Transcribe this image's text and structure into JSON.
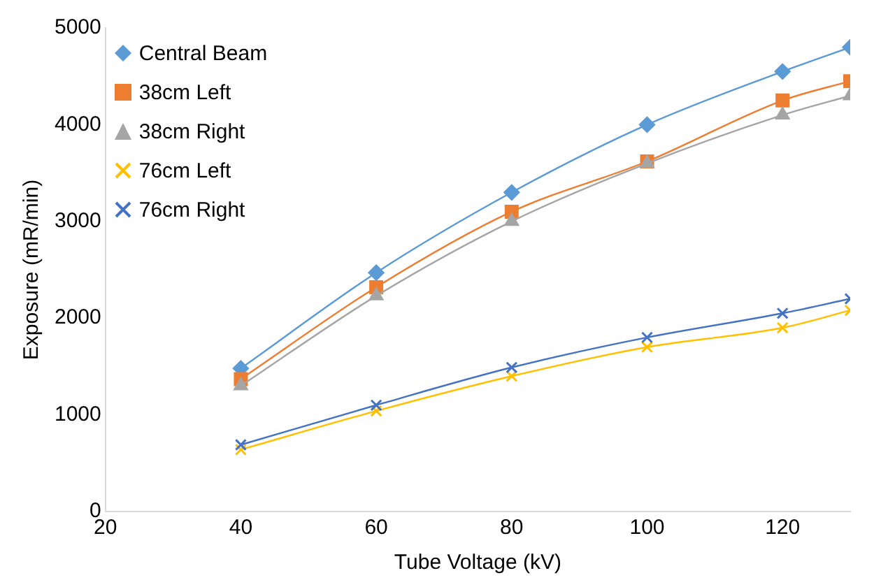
{
  "chart_data": {
    "type": "line",
    "xlabel": "Tube Voltage (kV)",
    "ylabel": "Exposure (mR/min)",
    "x": [
      40,
      60,
      80,
      100,
      120,
      130
    ],
    "series": [
      {
        "name": "Central Beam",
        "color": "#5b9bd5",
        "marker": "diamond",
        "values": [
          1480,
          2470,
          3300,
          4000,
          4550,
          4800
        ]
      },
      {
        "name": "38cm Left",
        "color": "#ed7d31",
        "marker": "square",
        "values": [
          1370,
          2320,
          3100,
          3620,
          4250,
          4450
        ]
      },
      {
        "name": "38cm Right",
        "color": "#a5a5a5",
        "marker": "triangle",
        "values": [
          1300,
          2230,
          3000,
          3600,
          4100,
          4300
        ]
      },
      {
        "name": "76cm Left",
        "color": "#ffc000",
        "marker": "cross",
        "values": [
          640,
          1040,
          1400,
          1700,
          1900,
          2080
        ]
      },
      {
        "name": "76cm Right",
        "color": "#4472c4",
        "marker": "cross",
        "values": [
          690,
          1100,
          1490,
          1800,
          2050,
          2200
        ]
      }
    ],
    "xlim": [
      20,
      130
    ],
    "xticks": [
      20,
      40,
      60,
      80,
      100,
      120
    ],
    "ylim": [
      0,
      5000
    ],
    "yticks": [
      0,
      1000,
      2000,
      3000,
      4000,
      5000
    ],
    "grid": false,
    "legend": "top left",
    "line_style": "solid"
  }
}
